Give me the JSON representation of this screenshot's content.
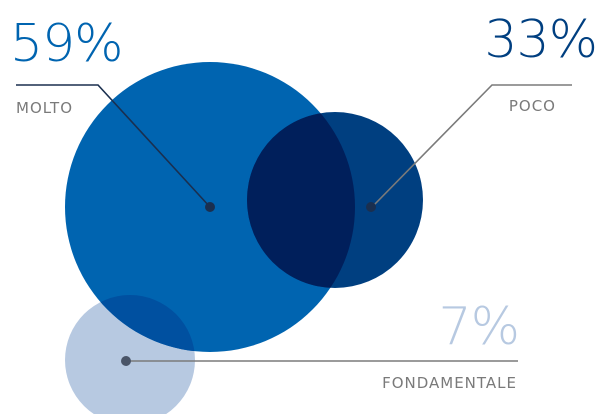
{
  "chart_data": {
    "type": "bubble",
    "series": [
      {
        "name": "MOLTO",
        "label": "MOLTO",
        "value": 59,
        "display": "59%",
        "color": "#0064b0"
      },
      {
        "name": "POCO",
        "label": "POCO",
        "value": 33,
        "display": "33%",
        "color": "#003f80"
      },
      {
        "name": "FONDAMENTALE",
        "label": "FONDAMENTALE",
        "value": 7,
        "display": "7%",
        "color": "#b7c9e1"
      }
    ],
    "colors": {
      "overlap_molto_poco": "#001f5b",
      "overlap_molto_fondamentale": "#0050a0",
      "leader_line": "#7a7a7a",
      "label_text": "#7a7a7a",
      "marker": "#1a2f4f"
    }
  }
}
